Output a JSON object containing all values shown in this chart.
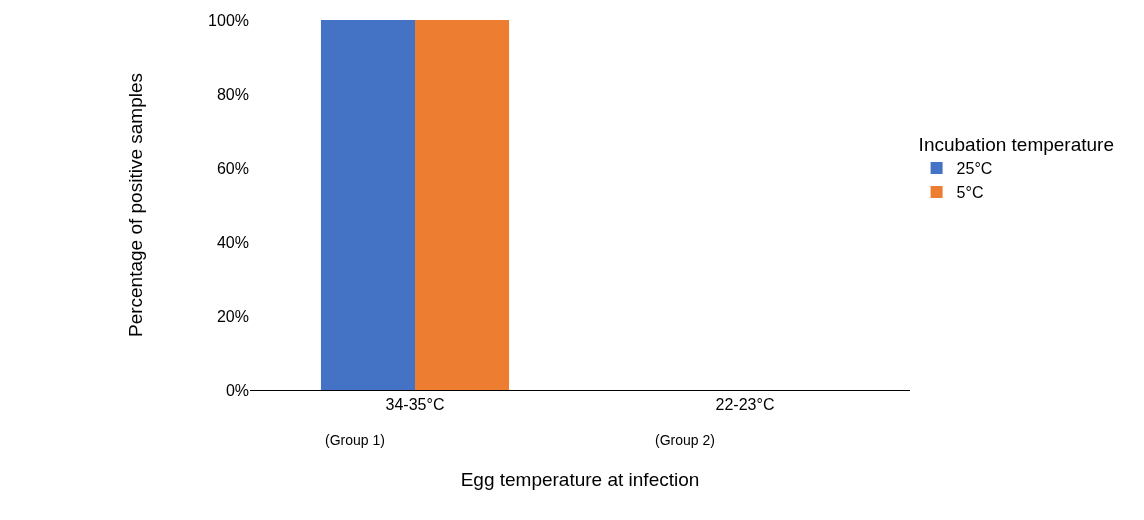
{
  "chart_data": {
    "type": "bar",
    "xlabel": "Egg temperature at infection",
    "ylabel": "Percentage of positive samples",
    "legend_title": "Incubation temperature",
    "categories": [
      "34-35°C",
      "22-23°C"
    ],
    "series": [
      {
        "name": "25°C",
        "color": "#4472c4",
        "values": [
          100,
          0
        ]
      },
      {
        "name": "5°C",
        "color": "#ed7d31",
        "values": [
          100,
          0
        ]
      }
    ],
    "ylim": [
      0,
      100
    ],
    "yticks": [
      {
        "value": 0,
        "label": "0%"
      },
      {
        "value": 20,
        "label": "20%"
      },
      {
        "value": 40,
        "label": "40%"
      },
      {
        "value": 60,
        "label": "60%"
      },
      {
        "value": 80,
        "label": "80%"
      },
      {
        "value": 100,
        "label": "100%"
      }
    ],
    "annotations": [
      "(Group 1)",
      "(Group 2)"
    ],
    "grid": false,
    "legend": "right"
  }
}
